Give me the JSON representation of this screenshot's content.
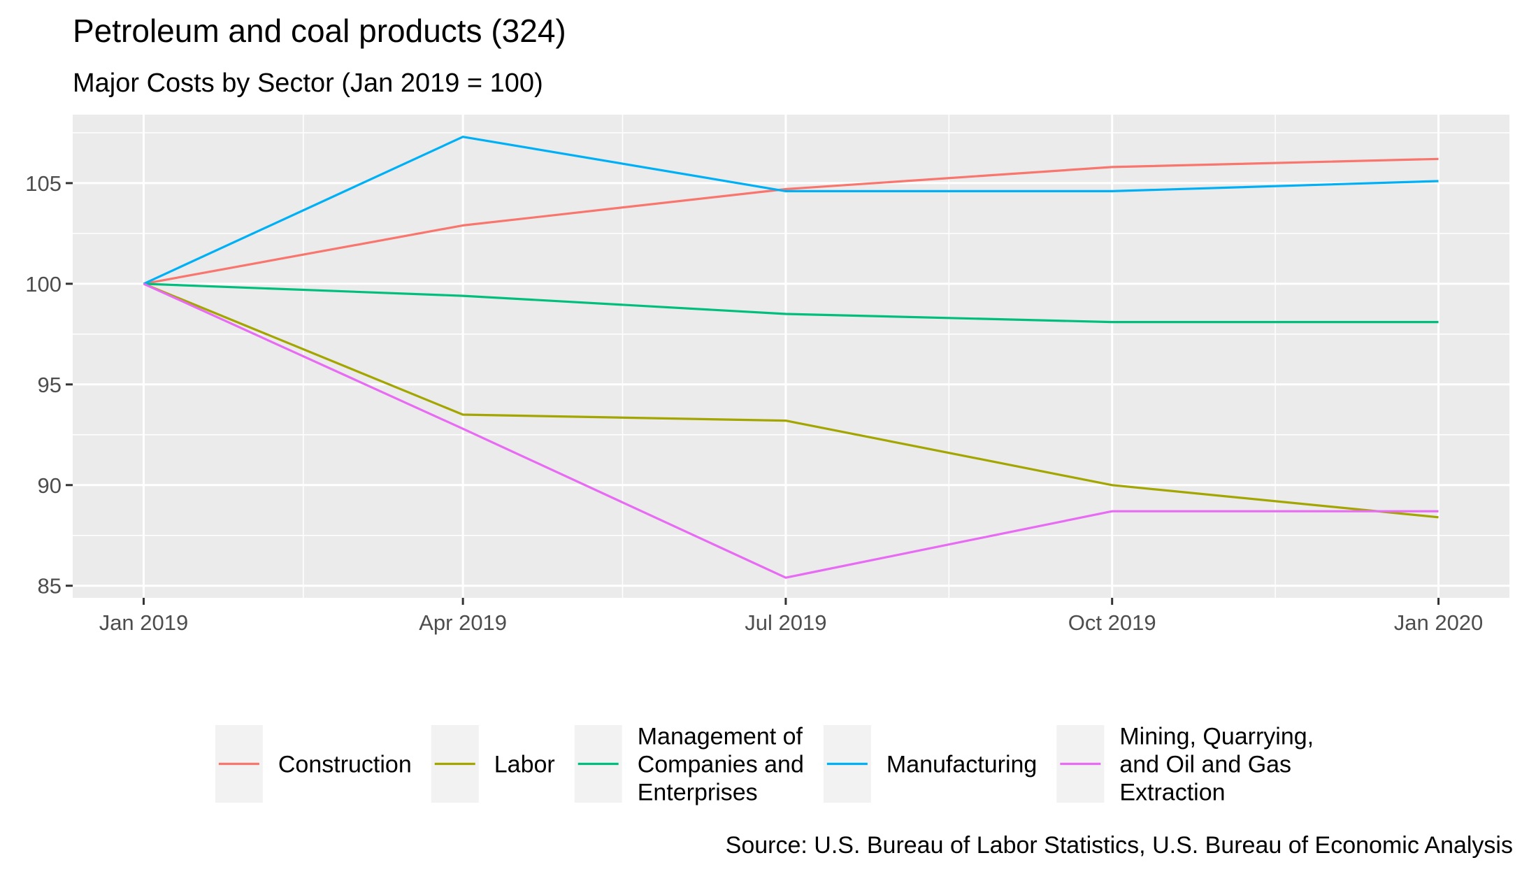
{
  "chart_data": {
    "type": "line",
    "title": "Petroleum and coal products (324)",
    "subtitle": "Major Costs by Sector (Jan 2019 = 100)",
    "caption": "Source: U.S. Bureau of Labor Statistics, U.S. Bureau of Economic Analysis",
    "xlabel": "",
    "ylabel": "",
    "x": [
      "2019-01-01",
      "2019-04-01",
      "2019-07-01",
      "2019-10-01",
      "2020-01-01"
    ],
    "x_ticks": [
      "2019-01-01",
      "2019-04-01",
      "2019-07-01",
      "2019-10-01",
      "2020-01-01"
    ],
    "x_tick_labels": [
      "Jan 2019",
      "Apr 2019",
      "Jul 2019",
      "Oct 2019",
      "Jan 2020"
    ],
    "x_minor_ticks": [
      "2019-02-15",
      "2019-05-16",
      "2019-08-16",
      "2019-11-16"
    ],
    "xlim": [
      "2018-12-12",
      "2020-01-21"
    ],
    "y_ticks": [
      85,
      90,
      95,
      100,
      105
    ],
    "y_tick_labels": [
      "85",
      "90",
      "95",
      "100",
      "105"
    ],
    "ylim": [
      84.4,
      108.4
    ],
    "grid": true,
    "legend_position": "bottom",
    "series": [
      {
        "name": "Construction",
        "color": "#F8766D",
        "values": [
          100,
          102.9,
          104.7,
          105.8,
          106.2
        ]
      },
      {
        "name": "Labor",
        "color": "#A3A500",
        "values": [
          100,
          93.5,
          93.2,
          90.0,
          88.4
        ]
      },
      {
        "name": "Management of Companies and Enterprises",
        "legend_lines": [
          "Management of",
          "Companies and",
          "Enterprises"
        ],
        "color": "#00BF7D",
        "values": [
          100,
          99.4,
          98.5,
          98.1,
          98.1
        ]
      },
      {
        "name": "Manufacturing",
        "color": "#00B0F6",
        "values": [
          100,
          107.3,
          104.6,
          104.6,
          105.1
        ]
      },
      {
        "name": "Mining, Quarrying, and Oil and Gas Extraction",
        "legend_lines": [
          "Mining, Quarrying,",
          "and Oil and Gas",
          "Extraction"
        ],
        "color": "#E76BF3",
        "values": [
          100,
          92.8,
          85.4,
          88.7,
          88.7
        ]
      }
    ]
  }
}
